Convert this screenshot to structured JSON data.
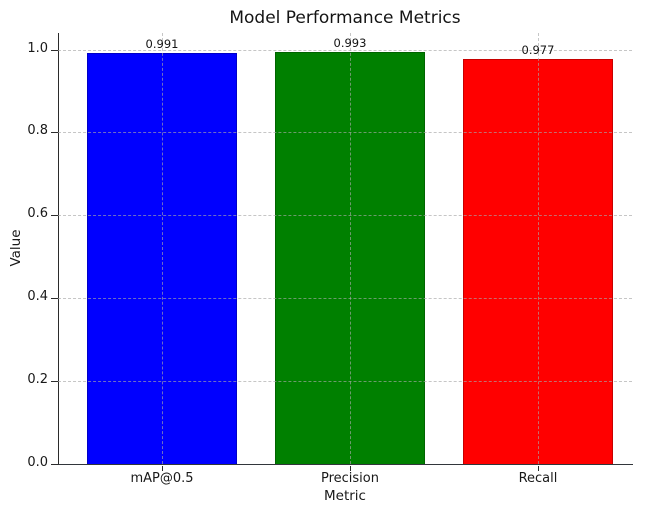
{
  "chart_data": {
    "type": "bar",
    "title": "Model Performance Metrics",
    "xlabel": "Metric",
    "ylabel": "Value",
    "categories": [
      "mAP@0.5",
      "Precision",
      "Recall"
    ],
    "values": [
      0.991,
      0.993,
      0.977
    ],
    "value_labels": [
      "0.991",
      "0.993",
      "0.977"
    ],
    "bar_colors": [
      "#0000ff",
      "#008000",
      "#ff0000"
    ],
    "yticks": [
      0.0,
      0.2,
      0.4,
      0.6,
      0.8,
      1.0
    ],
    "ytick_labels": [
      "0.0",
      "0.2",
      "0.4",
      "0.6",
      "0.8",
      "1.0"
    ],
    "ylim": [
      0,
      1.04
    ],
    "bar_width_fraction": 0.8,
    "grid": {
      "visible": true,
      "style": "dashed",
      "color": "#a8a8a8",
      "axes": "both",
      "drawn_above_bars": true
    },
    "legend": "none",
    "background_color": "#ffffff",
    "text_color": "#191919"
  }
}
